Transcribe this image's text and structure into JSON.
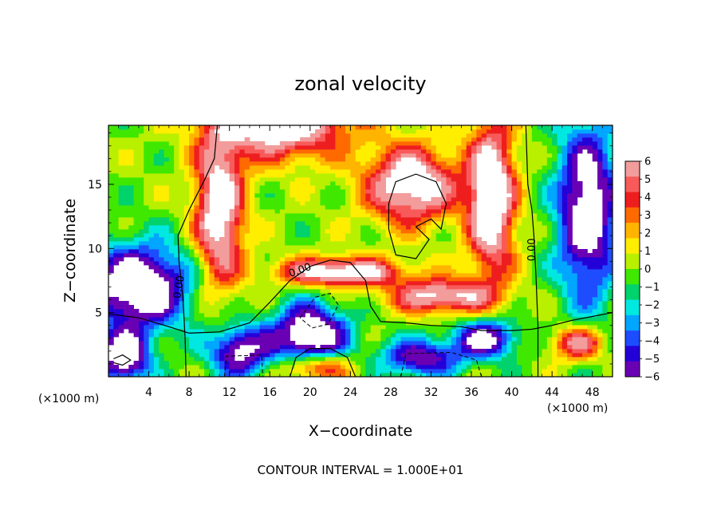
{
  "chart_data": {
    "type": "heatmap",
    "title": "zonal velocity",
    "xlabel": "X−coordinate",
    "ylabel": "Z−coordinate",
    "x_unit_left": "(×1000 m)",
    "x_unit_right": "(×1000 m)",
    "footer": "CONTOUR INTERVAL = 1.000E+01",
    "xlim": [
      0,
      50
    ],
    "ylim": [
      0,
      19.6
    ],
    "x_ticks": [
      4,
      8,
      12,
      16,
      20,
      24,
      28,
      32,
      36,
      40,
      44,
      48
    ],
    "y_ticks": [
      5,
      10,
      15
    ],
    "contour_labels": [
      "0.00",
      "0.00",
      "0.00"
    ],
    "colorbar": {
      "labels": [
        "6",
        "5",
        "4",
        "3",
        "2",
        "1",
        "0",
        "−1",
        "−2",
        "−3",
        "−4",
        "−5",
        "−6"
      ],
      "colors": [
        "#f29c9c",
        "#f85a5a",
        "#ef1e1e",
        "#ff6a00",
        "#ffb400",
        "#ffee00",
        "#b9f000",
        "#40e800",
        "#00d26c",
        "#00e8e0",
        "#00a6ff",
        "#1e4cff",
        "#2400d8",
        "#6a00b4"
      ]
    }
  }
}
